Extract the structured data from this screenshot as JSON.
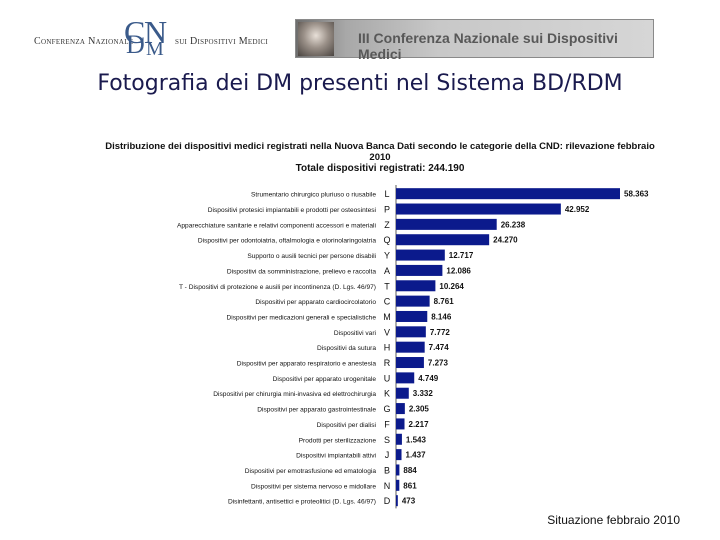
{
  "header": {
    "org_left": "Conferenza Nazionale",
    "logo_letters": [
      "C",
      "N",
      "D",
      "M"
    ],
    "org_right": "sui Dispositivi Medici",
    "banner_text": "III Conferenza Nazionale sui Dispositivi Medici"
  },
  "page_title": "Fotografia dei DM presenti nel Sistema BD/RDM",
  "chart_data": {
    "type": "bar",
    "orientation": "horizontal",
    "title_lines": [
      "Distribuzione dei dispositivi medici registrati nella Nuova Banca Dati secondo le categorie della CND: rilevazione febbraio",
      "2010"
    ],
    "subtitle": "Totale dispositivi registrati: 244.190",
    "bar_color": "#0b1a8c",
    "categories": [
      "Strumentario chirurgico pluriuso o riusabile",
      "Dispositivi protesici impiantabili e prodotti per osteosintesi",
      "Apparecchiature sanitarie e relativi componenti accessori e materiali",
      "Dispositivi per odontoiatria, oftalmologia e otorinolaringoiatria",
      "Supporto o ausili tecnici per persone disabili",
      "Dispositivi da somministrazione, prelievo e raccolta",
      "T - Dispositivi di protezione e ausili per incontinenza (D. Lgs. 46/97)",
      "Dispositivi per apparato cardiocircolatorio",
      "Dispositivi per medicazioni generali e specialistiche",
      "Dispositivi vari",
      "Dispositivi da sutura",
      "Dispositivi per apparato respiratorio e anestesia",
      "Dispositivi per apparato urogenitale",
      "Dispositivi per chirurgia mini-invasiva ed elettrochirurgia",
      "Dispositivi per apparato gastrointestinale",
      "Dispositivi per dialisi",
      "Prodotti per sterilizzazione",
      "Dispositivi impiantabili attivi",
      "Dispositivi per emotrasfusione ed ematologia",
      "Dispositivi per sistema nervoso e midollare",
      "Disinfettanti, antisettici e proteolitici (D. Lgs. 46/97)"
    ],
    "codes": [
      "L",
      "P",
      "Z",
      "Q",
      "Y",
      "A",
      "T",
      "C",
      "M",
      "V",
      "H",
      "R",
      "U",
      "K",
      "G",
      "F",
      "S",
      "J",
      "B",
      "N",
      "D"
    ],
    "values": [
      58363,
      42952,
      26238,
      24270,
      12717,
      12086,
      10264,
      8761,
      8146,
      7772,
      7474,
      7273,
      4749,
      3332,
      2305,
      2217,
      1543,
      1437,
      884,
      861,
      473
    ],
    "value_labels": [
      "58.363",
      "42.952",
      "26.238",
      "24.270",
      "12.717",
      "12.086",
      "10.264",
      "8.761",
      "8.146",
      "7.772",
      "7.474",
      "7.273",
      "4.749",
      "3.332",
      "2.305",
      "2.217",
      "1.543",
      "1.437",
      "884",
      "861",
      "473"
    ],
    "xlim": [
      0,
      60000
    ],
    "grid": false,
    "legend": "none"
  },
  "footer": "Situazione febbraio 2010"
}
